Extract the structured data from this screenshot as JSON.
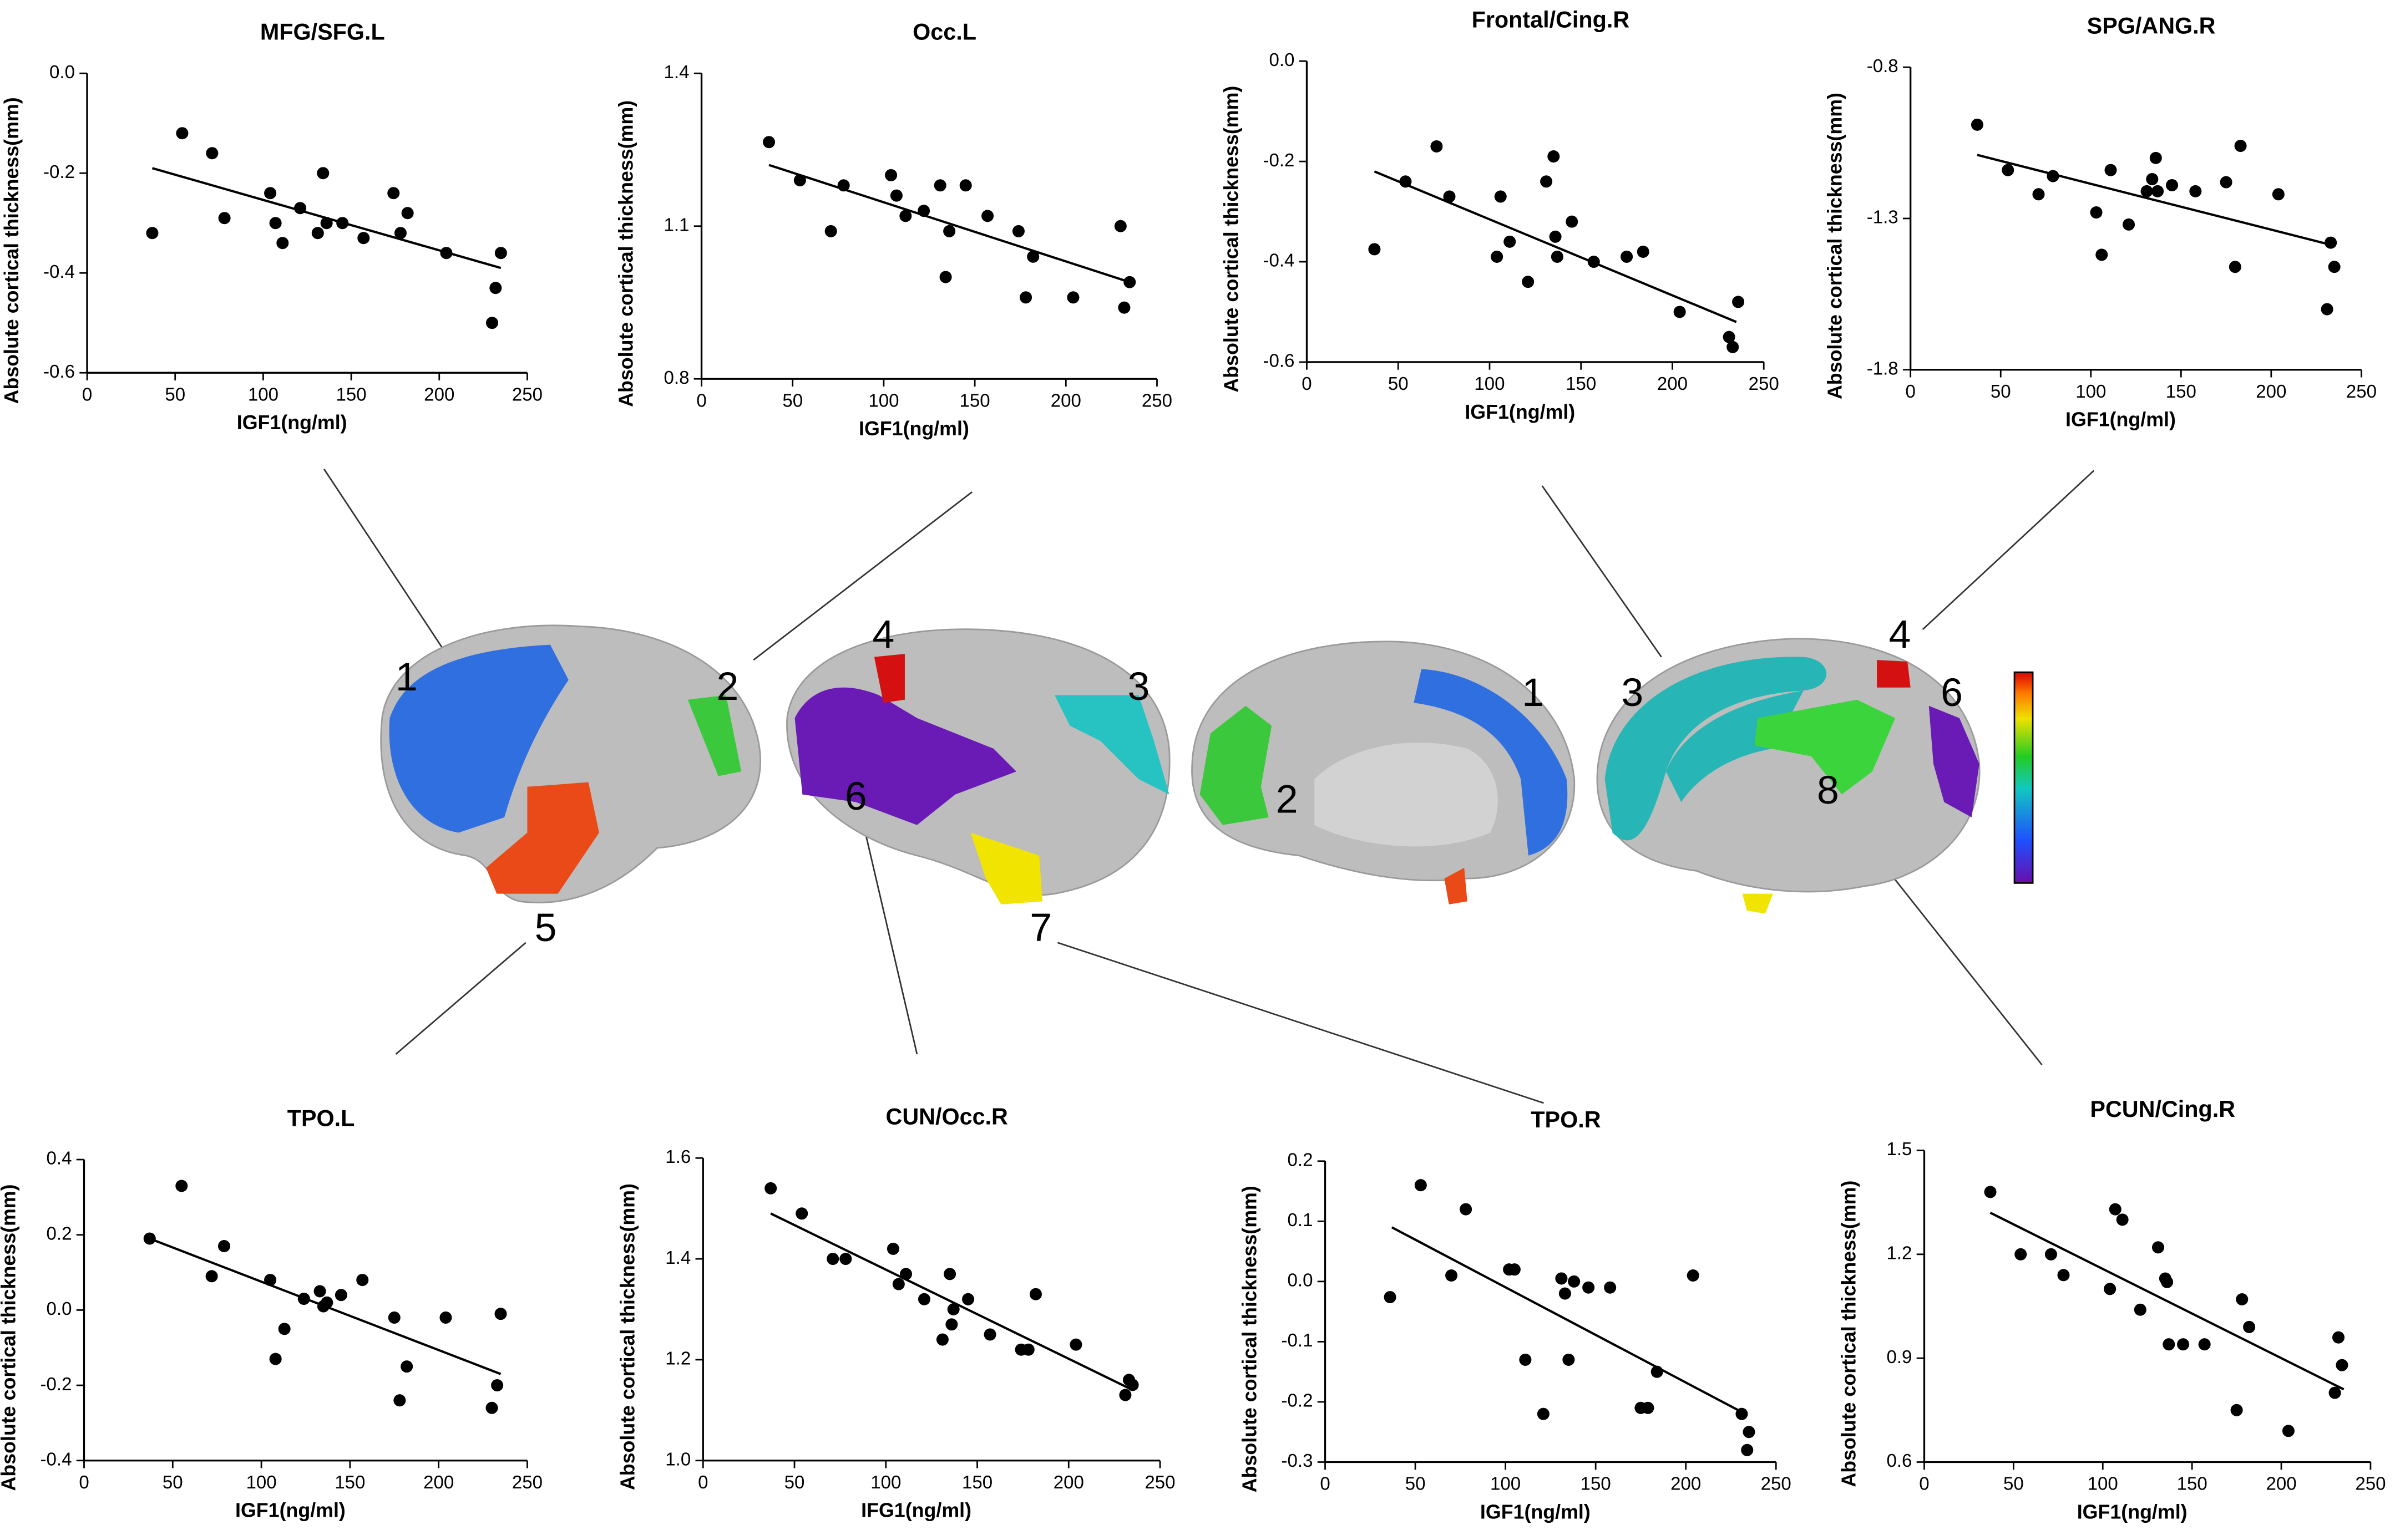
{
  "chart_data": [
    {
      "type": "scatter",
      "title": "MFG/SFG.L",
      "x_label": "IGF1(ng/ml)",
      "y_label": "Absolute cortical thickness(mm)",
      "color": "#000000",
      "xlim": [
        0,
        250
      ],
      "xticks": [
        0,
        50,
        100,
        150,
        200,
        250
      ],
      "ylim": [
        -0.6,
        0
      ],
      "yticks": [
        {
          "value": 0,
          "label": "0.0"
        },
        -0.2,
        -0.4,
        -0.6
      ],
      "x": [
        37,
        54,
        71,
        78,
        104,
        107,
        111,
        121,
        131,
        134,
        136,
        145,
        157,
        174,
        178,
        182,
        204,
        230,
        232,
        235
      ],
      "y": [
        -0.32,
        -0.12,
        -0.16,
        -0.29,
        -0.24,
        -0.3,
        -0.34,
        -0.27,
        -0.32,
        -0.2,
        -0.3,
        -0.3,
        -0.33,
        -0.24,
        -0.32,
        -0.28,
        -0.36,
        -0.5,
        -0.43,
        -0.36
      ],
      "fit_line": {
        "x": [
          37,
          235
        ],
        "y": [
          -0.19,
          -0.39
        ]
      }
    },
    {
      "type": "scatter",
      "title": "Occ.L",
      "x_label": "IGF1(ng/ml)",
      "y_label": "Absolute cortical thickness(mm)",
      "color": "#000000",
      "xlim": [
        0,
        250
      ],
      "xticks": [
        0,
        50,
        100,
        150,
        200,
        250
      ],
      "ylim": [
        0.8,
        1.4
      ],
      "yticks": [
        1.4,
        1.1,
        0.8
      ],
      "x": [
        37,
        54,
        71,
        78,
        104,
        107,
        112,
        122,
        131,
        134,
        136,
        145,
        157,
        174,
        178,
        182,
        204,
        230,
        232,
        235
      ],
      "y": [
        1.265,
        1.19,
        1.09,
        1.18,
        1.2,
        1.16,
        1.12,
        1.13,
        1.18,
        1.0,
        1.09,
        1.18,
        1.12,
        1.09,
        0.96,
        1.04,
        0.96,
        1.1,
        0.94,
        0.99
      ],
      "fit_line": {
        "x": [
          37,
          235
        ],
        "y": [
          1.22,
          0.99
        ]
      }
    },
    {
      "type": "scatter",
      "title": "Frontal/Cing.R",
      "x_label": "IGF1(ng/ml)",
      "y_label": "Absolute cortical thickness(mm)",
      "color": "#000000",
      "xlim": [
        0,
        250
      ],
      "xticks": [
        0,
        50,
        100,
        150,
        200,
        250
      ],
      "ylim": [
        -0.6,
        0
      ],
      "yticks": [
        {
          "value": 0,
          "label": "0.0"
        },
        -0.2,
        -0.4,
        -0.6
      ],
      "x": [
        37,
        54,
        71,
        78,
        104,
        106,
        111,
        121,
        131,
        135,
        136,
        137,
        145,
        157,
        175,
        184,
        204,
        231,
        233,
        236
      ],
      "y": [
        -0.375,
        -0.24,
        -0.17,
        -0.27,
        -0.39,
        -0.27,
        -0.36,
        -0.44,
        -0.24,
        -0.19,
        -0.35,
        -0.39,
        -0.32,
        -0.4,
        -0.39,
        -0.38,
        -0.5,
        -0.55,
        -0.57,
        -0.48
      ],
      "fit_line": {
        "x": [
          37,
          235
        ],
        "y": [
          -0.22,
          -0.52
        ]
      }
    },
    {
      "type": "scatter",
      "title": "SPG/ANG.R",
      "x_label": "IGF1(ng/ml)",
      "y_label": "Absolute cortical thickness(mm)",
      "color": "#000000",
      "xlim": [
        0,
        250
      ],
      "xticks": [
        0,
        50,
        100,
        150,
        200,
        250
      ],
      "ylim": [
        -1.8,
        -0.8
      ],
      "yticks": [
        -0.8,
        -1.3,
        -1.8
      ],
      "x": [
        37,
        54,
        71,
        79,
        103,
        106,
        111,
        121,
        131,
        134,
        136,
        137,
        145,
        158,
        175,
        180,
        183,
        204,
        231,
        233,
        235
      ],
      "y": [
        -0.99,
        -1.14,
        -1.22,
        -1.16,
        -1.28,
        -1.42,
        -1.14,
        -1.32,
        -1.21,
        -1.17,
        -1.1,
        -1.21,
        -1.19,
        -1.21,
        -1.18,
        -1.46,
        -1.06,
        -1.22,
        -1.6,
        -1.38,
        -1.46
      ],
      "fit_line": {
        "x": [
          37,
          235
        ],
        "y": [
          -1.09,
          -1.39
        ]
      }
    },
    {
      "type": "scatter",
      "title": "TPO.L",
      "x_label": "IGF1(ng/ml)",
      "y_label": "Absolute cortical thickness(mm)",
      "color": "#000000",
      "xlim": [
        0,
        250
      ],
      "xticks": [
        0,
        50,
        100,
        150,
        200,
        250
      ],
      "ylim": [
        -0.4,
        0.4
      ],
      "yticks": [
        0.4,
        0.2,
        {
          "value": 0,
          "label": "0.0"
        },
        -0.2,
        -0.4
      ],
      "x": [
        37,
        55,
        72,
        79,
        105,
        108,
        113,
        124,
        133,
        135,
        137,
        145,
        157,
        175,
        178,
        182,
        204,
        230,
        233,
        235
      ],
      "y": [
        0.19,
        0.33,
        0.09,
        0.17,
        0.08,
        -0.13,
        -0.05,
        0.03,
        0.05,
        0.01,
        0.02,
        0.04,
        0.08,
        -0.02,
        -0.24,
        -0.15,
        -0.02,
        -0.26,
        -0.2,
        -0.01
      ],
      "fit_line": {
        "x": [
          37,
          235
        ],
        "y": [
          0.19,
          -0.17
        ]
      }
    },
    {
      "type": "scatter",
      "title": "CUN/Occ.R",
      "x_label": "IFG1(ng/ml)",
      "y_label": "Absolute cortical thickness(mm)",
      "color": "#000000",
      "xlim": [
        0,
        250
      ],
      "xticks": [
        0,
        50,
        100,
        150,
        200,
        250
      ],
      "ylim": [
        1.0,
        1.6
      ],
      "yticks": [
        1.6,
        1.4,
        1.2,
        {
          "value": 1,
          "label": "1.0"
        }
      ],
      "x": [
        37,
        54,
        71,
        78,
        104,
        107,
        111,
        121,
        131,
        135,
        136,
        137,
        145,
        157,
        174,
        178,
        182,
        204,
        231,
        233,
        235
      ],
      "y": [
        1.54,
        1.49,
        1.4,
        1.4,
        1.42,
        1.35,
        1.37,
        1.32,
        1.24,
        1.37,
        1.27,
        1.3,
        1.32,
        1.25,
        1.22,
        1.22,
        1.33,
        1.23,
        1.13,
        1.16,
        1.15
      ],
      "fit_line": {
        "x": [
          37,
          235
        ],
        "y": [
          1.49,
          1.14
        ]
      }
    },
    {
      "type": "scatter",
      "title": "TPO.R",
      "x_label": "IGF1(ng/ml)",
      "y_label": "Absolute cortical thickness(mm)",
      "color": "#000000",
      "xlim": [
        0,
        250
      ],
      "xticks": [
        0,
        50,
        100,
        150,
        200,
        250
      ],
      "ylim": [
        -0.3,
        0.2
      ],
      "yticks": [
        0.2,
        0.1,
        {
          "value": 0,
          "label": "0.0"
        },
        -0.1,
        -0.2,
        -0.3
      ],
      "x": [
        36,
        53,
        70,
        78,
        102,
        105,
        111,
        121,
        131,
        133,
        135,
        138,
        146,
        158,
        175,
        179,
        184,
        204,
        231,
        235,
        234
      ],
      "y": [
        -0.026,
        0.16,
        0.01,
        0.12,
        0.02,
        0.02,
        -0.13,
        -0.22,
        0.005,
        -0.02,
        -0.13,
        0,
        -0.01,
        -0.01,
        -0.21,
        -0.21,
        -0.15,
        0.01,
        -0.22,
        -0.25,
        -0.28
      ],
      "fit_line": {
        "x": [
          37,
          233
        ],
        "y": [
          0.09,
          -0.22
        ]
      }
    },
    {
      "type": "scatter",
      "title": "PCUN/Cing.R",
      "x_label": "IGF1(ng/ml)",
      "y_label": "Absolute cortical thickness(mm)",
      "color": "#000000",
      "xlim": [
        0,
        250
      ],
      "xticks": [
        0,
        50,
        100,
        150,
        200,
        250
      ],
      "ylim": [
        0.6,
        1.5
      ],
      "yticks": [
        1.5,
        1.2,
        0.9,
        0.6
      ],
      "x": [
        37,
        54,
        71,
        78,
        104,
        107,
        111,
        121,
        131,
        135,
        136,
        137,
        145,
        157,
        175,
        178,
        182,
        204,
        230,
        232,
        234
      ],
      "y": [
        1.38,
        1.2,
        1.2,
        1.14,
        1.1,
        1.33,
        1.3,
        1.04,
        1.22,
        1.13,
        1.12,
        0.94,
        0.94,
        0.94,
        0.75,
        1.07,
        0.99,
        0.69,
        0.8,
        0.96,
        0.88
      ],
      "fit_line": {
        "x": [
          37,
          235
        ],
        "y": [
          1.32,
          0.81
        ]
      }
    }
  ],
  "brain_labels": [
    "1",
    "2",
    "5",
    "4",
    "3",
    "6",
    "7",
    "1",
    "2",
    "3",
    "4",
    "6",
    "8"
  ]
}
